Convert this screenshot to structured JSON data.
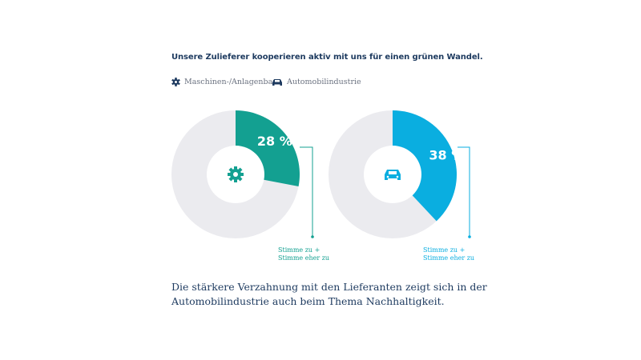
{
  "title": "Unsere Zulieferer kooperieren aktiv mit uns für einen grünen Wandel.",
  "legend": [
    {
      "label": "Maschinen-/Anlagenbau",
      "icon": "gear-icon"
    },
    {
      "label": "Automobilindustrie",
      "icon": "car-icon"
    }
  ],
  "footer": "Die stärkere Verzahnung mit den Lieferanten zeigt sich in der Automobilindustrie auch beim Thema Nachhaltigkeit.",
  "chart_data": [
    {
      "type": "pie",
      "variant": "donut",
      "category": "Maschinen-/Anlagenbau",
      "value": 28,
      "label": "28 %",
      "color": "#13a091",
      "rest_color": "#ebebef",
      "annotation_line1": "Stimme zu +",
      "annotation_line2": "Stimme eher zu"
    },
    {
      "type": "pie",
      "variant": "donut",
      "category": "Automobilindustrie",
      "value": 38,
      "label": "38 %",
      "color": "#0aaee0",
      "rest_color": "#ebebef",
      "annotation_line1": "Stimme zu +",
      "annotation_line2": "Stimme eher zu"
    }
  ]
}
